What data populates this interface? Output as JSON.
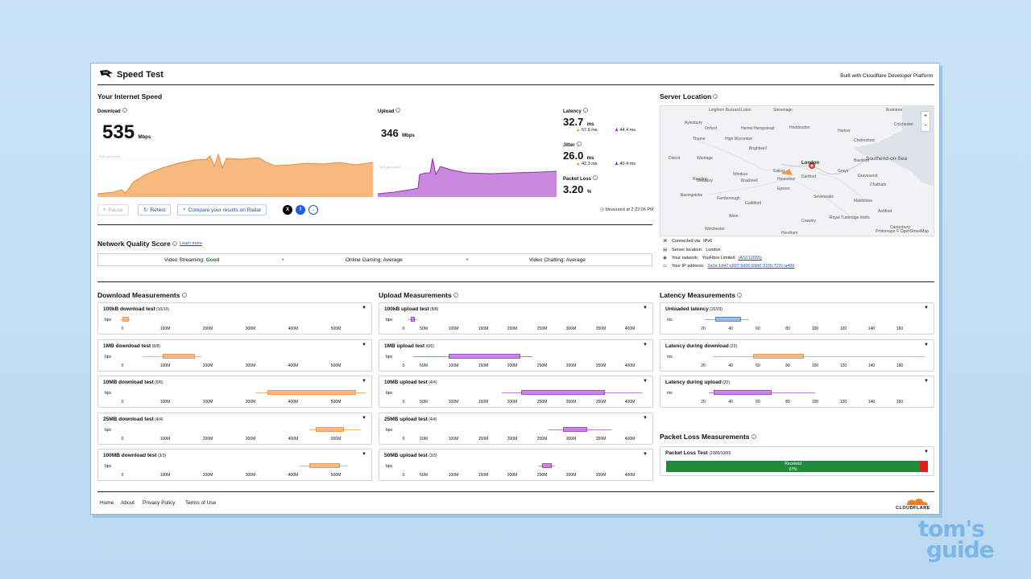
{
  "header": {
    "app_title": "Speed Test",
    "platform_label": "Built with Cloudflare Developer Platform"
  },
  "internet_speed": {
    "title": "Your Internet Speed",
    "download": {
      "label": "Download",
      "value": "535",
      "unit": "Mbps",
      "chart_note": "90th percentile"
    },
    "upload": {
      "label": "Upload",
      "value": "346",
      "unit": "Mbps",
      "chart_note": "90th percentile"
    },
    "latency": {
      "label": "Latency",
      "value": "32.7",
      "unit": "ms",
      "down": "57.9 ms",
      "up": "44.4 ms"
    },
    "jitter": {
      "label": "Jitter",
      "value": "26.0",
      "unit": "ms",
      "down": "42.3 ms",
      "up": "40.4 ms"
    },
    "packet_loss": {
      "label": "Packet Loss",
      "value": "3.20",
      "unit": "%"
    },
    "measured_at": "Measured at 2:22:06 PM",
    "buttons": {
      "pause": "Pause",
      "retest": "Retest",
      "compare": "Compare your results on Radar"
    },
    "colors": {
      "download": "#f39a48",
      "upload": "#a845c9",
      "accent": "#1d4fbf"
    }
  },
  "network_quality": {
    "title": "Network Quality Score",
    "learn_more": "Learn more",
    "video_streaming": {
      "label": "Video Streaming:",
      "value": "Good"
    },
    "online_gaming": {
      "label": "Online Gaming:",
      "value": "Average"
    },
    "video_chatting": {
      "label": "Video Chatting:",
      "value": "Average"
    }
  },
  "server_location": {
    "title": "Server Location",
    "map_attribution": "Protomaps © OpenStreetMap",
    "zoom_in": "+",
    "zoom_out": "−",
    "towns": [
      "Leighton Buzzard",
      "Luton",
      "Stevenage",
      "Braintree",
      "Colchester",
      "Aylesbury",
      "Hemel Hempstead",
      "Hoddesdon",
      "Harlow",
      "Chelmsford",
      "Oxford",
      "Thame",
      "High Wycombe",
      "Brightwell",
      "Basildon",
      "Southend-on-Sea",
      "Didcot",
      "Wantage",
      "Reading",
      "Windsor",
      "London",
      "Grays",
      "Gravesend",
      "Newbury",
      "Bracknell",
      "Hounslow",
      "Ealing",
      "Dartford",
      "Chatham",
      "Basingstoke",
      "Farnborough",
      "Guildford",
      "Epsom",
      "Sevenoaks",
      "Maidstone",
      "Alton",
      "Crawley",
      "Royal Tunbridge Wells",
      "Ashford",
      "Winchester",
      "Horsham",
      "Canterbury"
    ],
    "connected_via": {
      "label": "Connected via",
      "value": "IPv6"
    },
    "server": {
      "label": "Server location:",
      "value": "London"
    },
    "network": {
      "label": "Your network:",
      "value": "YouFibre Limited",
      "asn": "(AS212655)"
    },
    "ip": {
      "label": "Your IP address:",
      "value": "2a0e:1d47:c907:5d00:69b6:3155:722c:a460"
    }
  },
  "download_measurements": {
    "title": "Download Measurements",
    "unit_label": "bps",
    "ticks": [
      "0",
      "100M",
      "200M",
      "300M",
      "400M",
      "500M"
    ],
    "tests": [
      {
        "name": "100kB download test",
        "count": "(10/10)"
      },
      {
        "name": "1MB download test",
        "count": "(8/8)"
      },
      {
        "name": "10MB download test",
        "count": "(6/6)"
      },
      {
        "name": "25MB download test",
        "count": "(4/4)"
      },
      {
        "name": "100MB download test",
        "count": "(3/3)"
      }
    ]
  },
  "upload_measurements": {
    "title": "Upload Measurements",
    "unit_label": "bps",
    "ticks": [
      "0",
      "50M",
      "100M",
      "150M",
      "200M",
      "250M",
      "300M",
      "350M",
      "400M"
    ],
    "tests": [
      {
        "name": "100kB upload test",
        "count": "(8/8)"
      },
      {
        "name": "1MB upload test",
        "count": "(6/6)"
      },
      {
        "name": "10MB upload test",
        "count": "(4/4)"
      },
      {
        "name": "25MB upload test",
        "count": "(4/4)"
      },
      {
        "name": "50MB upload test",
        "count": "(3/3)"
      }
    ]
  },
  "latency_measurements": {
    "title": "Latency Measurements",
    "unit_label": "ms",
    "ticks": [
      "20",
      "40",
      "60",
      "80",
      "100",
      "120",
      "140",
      "160"
    ],
    "tests": [
      {
        "name": "Unloaded latency",
        "count": "(20/20)"
      },
      {
        "name": "Latency during download",
        "count": "(20)"
      },
      {
        "name": "Latency during upload",
        "count": "(20)"
      }
    ]
  },
  "packet_loss_measurements": {
    "title": "Packet Loss Measurements",
    "test_name": "Packet Loss Test",
    "test_count": "(1000/1000)",
    "received_label": "Received",
    "received_pct": "97%",
    "received_fraction": 0.97
  },
  "footer": {
    "links": [
      "Home",
      "About",
      "Privacy Policy",
      "Terms of Use"
    ],
    "brand": "CLOUDFLARE"
  },
  "watermark": {
    "line1": "tom's",
    "line2": "guide"
  }
}
